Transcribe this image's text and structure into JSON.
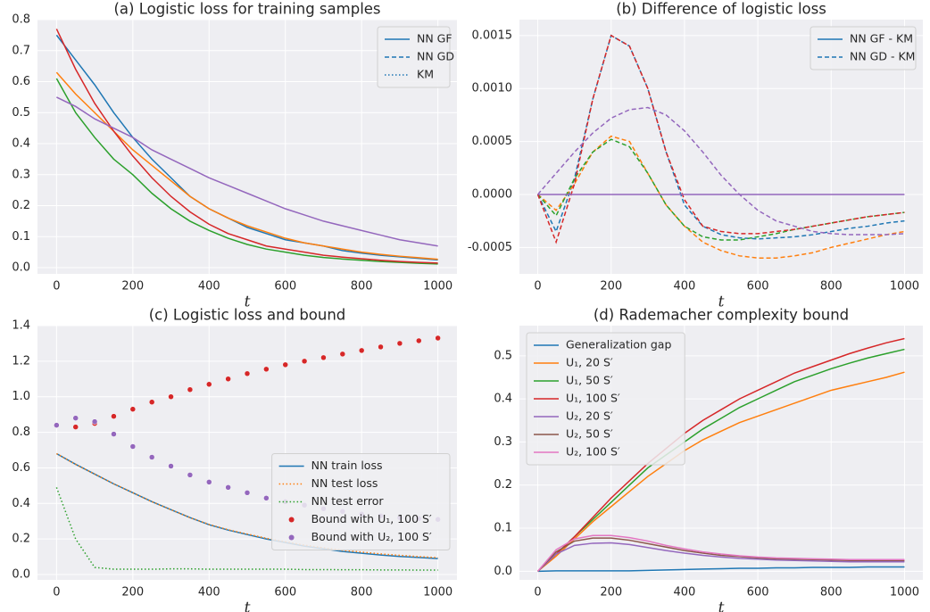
{
  "chart_data": [
    {
      "type": "line",
      "title": "(a) Logistic loss for training samples",
      "xlabel": "t",
      "x": [
        0,
        50,
        100,
        150,
        200,
        250,
        300,
        350,
        400,
        450,
        500,
        550,
        600,
        650,
        700,
        750,
        800,
        850,
        900,
        950,
        1000
      ],
      "xlim": [
        -50,
        1050
      ],
      "xticks": [
        0,
        200,
        400,
        600,
        800,
        1000
      ],
      "ylim": [
        -0.02,
        0.8
      ],
      "yticks": [
        {
          "value": 0,
          "label": "0.0"
        },
        0.1,
        0.2,
        0.3,
        0.4,
        0.5,
        0.6,
        0.7,
        0.8
      ],
      "grid": true,
      "legend_loc": "upper right",
      "legend": [
        {
          "name": "NN GF",
          "style": "solid",
          "color": "#1f77b4"
        },
        {
          "name": "NN GD",
          "style": "dashed",
          "color": "#1f77b4"
        },
        {
          "name": "KM",
          "style": "dotted",
          "color": "#1f77b4"
        }
      ],
      "series": [
        {
          "color": "#1f77b4",
          "style": "solid",
          "values": [
            0.75,
            0.67,
            0.59,
            0.5,
            0.42,
            0.35,
            0.29,
            0.23,
            0.19,
            0.16,
            0.13,
            0.11,
            0.09,
            0.08,
            0.07,
            0.055,
            0.047,
            0.04,
            0.035,
            0.03,
            0.025
          ]
        },
        {
          "color": "#ff7f0e",
          "style": "solid",
          "values": [
            0.63,
            0.56,
            0.5,
            0.44,
            0.38,
            0.33,
            0.28,
            0.23,
            0.19,
            0.16,
            0.135,
            0.115,
            0.095,
            0.08,
            0.07,
            0.06,
            0.05,
            0.043,
            0.037,
            0.032,
            0.027
          ]
        },
        {
          "color": "#2ca02c",
          "style": "solid",
          "values": [
            0.61,
            0.5,
            0.42,
            0.35,
            0.3,
            0.24,
            0.19,
            0.15,
            0.12,
            0.095,
            0.075,
            0.06,
            0.05,
            0.04,
            0.033,
            0.028,
            0.024,
            0.02,
            0.017,
            0.014,
            0.012
          ]
        },
        {
          "color": "#d62728",
          "style": "solid",
          "values": [
            0.77,
            0.64,
            0.53,
            0.44,
            0.36,
            0.29,
            0.23,
            0.18,
            0.14,
            0.11,
            0.09,
            0.07,
            0.06,
            0.05,
            0.04,
            0.034,
            0.029,
            0.024,
            0.02,
            0.017,
            0.015
          ]
        },
        {
          "color": "#9467bd",
          "style": "solid",
          "values": [
            0.55,
            0.52,
            0.48,
            0.45,
            0.42,
            0.38,
            0.35,
            0.32,
            0.29,
            0.265,
            0.24,
            0.215,
            0.19,
            0.17,
            0.15,
            0.135,
            0.12,
            0.105,
            0.09,
            0.08,
            0.07
          ]
        }
      ]
    },
    {
      "type": "line",
      "title": "(b) Difference of logistic loss",
      "xlabel": "t",
      "x": [
        0,
        50,
        100,
        150,
        200,
        250,
        300,
        350,
        400,
        450,
        500,
        550,
        600,
        650,
        700,
        750,
        800,
        850,
        900,
        950,
        1000
      ],
      "xlim": [
        -50,
        1050
      ],
      "xticks": [
        0,
        200,
        400,
        600,
        800,
        1000
      ],
      "ylim": [
        -0.00075,
        0.00165
      ],
      "yticks": [
        {
          "value": -0.0005,
          "label": "-0.0005"
        },
        {
          "value": 0,
          "label": "0.0000"
        },
        {
          "value": 0.0005,
          "label": "0.0005"
        },
        {
          "value": 0.001,
          "label": "0.0010"
        },
        {
          "value": 0.0015,
          "label": "0.0015"
        }
      ],
      "grid": true,
      "legend_loc": "upper right",
      "legend": [
        {
          "name": "NN GF - KM",
          "style": "solid",
          "color": "#1f77b4"
        },
        {
          "name": "NN GD - KM",
          "style": "dashed",
          "color": "#1f77b4"
        }
      ],
      "series": [
        {
          "color": "#1f77b4",
          "style": "dashed",
          "values": [
            0,
            -0.00035,
            0.00015,
            0.0009,
            0.0015,
            0.0014,
            0.001,
            0.0004,
            -0.0001,
            -0.0003,
            -0.00038,
            -0.00041,
            -0.00042,
            -0.00041,
            -0.0004,
            -0.00038,
            -0.00035,
            -0.00032,
            -0.0003,
            -0.00027,
            -0.00025
          ]
        },
        {
          "color": "#ff7f0e",
          "style": "dashed",
          "values": [
            0,
            -0.00015,
            0.0001,
            0.0004,
            0.00055,
            0.0005,
            0.0002,
            -0.0001,
            -0.0003,
            -0.00045,
            -0.00053,
            -0.00058,
            -0.0006,
            -0.0006,
            -0.00058,
            -0.00055,
            -0.0005,
            -0.00046,
            -0.00042,
            -0.00038,
            -0.00035
          ]
        },
        {
          "color": "#2ca02c",
          "style": "dashed",
          "values": [
            0,
            -0.0002,
            0.00015,
            0.0004,
            0.00052,
            0.00045,
            0.0002,
            -0.0001,
            -0.0003,
            -0.0004,
            -0.00043,
            -0.00043,
            -0.0004,
            -0.00037,
            -0.00033,
            -0.0003,
            -0.00027,
            -0.00024,
            -0.00021,
            -0.00019,
            -0.00017
          ]
        },
        {
          "color": "#d62728",
          "style": "dashed",
          "values": [
            0,
            -0.00045,
            0.0001,
            0.0009,
            0.0015,
            0.0014,
            0.001,
            0.0004,
            -5e-05,
            -0.0003,
            -0.00035,
            -0.00037,
            -0.00037,
            -0.00035,
            -0.00033,
            -0.0003,
            -0.00027,
            -0.00024,
            -0.00021,
            -0.00019,
            -0.00017
          ]
        },
        {
          "color": "#9467bd",
          "style": "dashed",
          "values": [
            0,
            0.0002,
            0.0004,
            0.00058,
            0.00072,
            0.0008,
            0.00082,
            0.00075,
            0.0006,
            0.0004,
            0.00018,
            0,
            -0.00015,
            -0.00025,
            -0.0003,
            -0.00035,
            -0.00037,
            -0.00038,
            -0.00038,
            -0.00038,
            -0.00037
          ]
        },
        {
          "color": "#9467bd",
          "style": "solid",
          "values": [
            0,
            0,
            0,
            0,
            0,
            0,
            0,
            0,
            0,
            0,
            0,
            0,
            0,
            0,
            0,
            0,
            0,
            0,
            0,
            0,
            0
          ]
        }
      ]
    },
    {
      "type": "line",
      "title": "(c) Logistic loss and bound",
      "xlabel": "t",
      "x": [
        0,
        50,
        100,
        150,
        200,
        250,
        300,
        350,
        400,
        450,
        500,
        550,
        600,
        650,
        700,
        750,
        800,
        850,
        900,
        950,
        1000
      ],
      "xlim": [
        -50,
        1050
      ],
      "xticks": [
        0,
        200,
        400,
        600,
        800,
        1000
      ],
      "ylim": [
        -0.03,
        1.4
      ],
      "yticks": [
        {
          "value": 0,
          "label": "0.0"
        },
        0.2,
        0.4,
        0.6,
        0.8,
        {
          "value": 1,
          "label": "1.0"
        },
        1.2,
        1.4
      ],
      "grid": true,
      "legend_loc": "center right",
      "series": [
        {
          "name": "NN train loss",
          "color": "#1f77b4",
          "style": "solid",
          "values": [
            0.68,
            0.62,
            0.565,
            0.51,
            0.46,
            0.41,
            0.365,
            0.32,
            0.28,
            0.25,
            0.225,
            0.2,
            0.18,
            0.16,
            0.145,
            0.13,
            0.12,
            0.11,
            0.102,
            0.096,
            0.09
          ]
        },
        {
          "name": "NN test loss",
          "color": "#ff7f0e",
          "style": "dotted",
          "values": [
            0.68,
            0.62,
            0.565,
            0.51,
            0.46,
            0.41,
            0.365,
            0.32,
            0.282,
            0.252,
            0.228,
            0.204,
            0.184,
            0.165,
            0.15,
            0.136,
            0.126,
            0.116,
            0.108,
            0.101,
            0.095
          ]
        },
        {
          "name": "NN test error",
          "color": "#2ca02c",
          "style": "dotted",
          "values": [
            0.49,
            0.2,
            0.04,
            0.03,
            0.03,
            0.03,
            0.032,
            0.032,
            0.03,
            0.03,
            0.03,
            0.03,
            0.03,
            0.028,
            0.028,
            0.027,
            0.027,
            0.026,
            0.026,
            0.025,
            0.025
          ]
        },
        {
          "name": "Bound with U₁, 100 S′",
          "color": "#d62728",
          "style": "dots",
          "values": [
            0.84,
            0.83,
            0.85,
            0.89,
            0.93,
            0.97,
            1.0,
            1.04,
            1.07,
            1.1,
            1.13,
            1.155,
            1.18,
            1.2,
            1.22,
            1.24,
            1.26,
            1.28,
            1.3,
            1.315,
            1.33
          ]
        },
        {
          "name": "Bound with U₂, 100 S′",
          "color": "#9467bd",
          "style": "dots",
          "values": [
            0.84,
            0.88,
            0.86,
            0.79,
            0.72,
            0.66,
            0.61,
            0.56,
            0.52,
            0.49,
            0.46,
            0.43,
            0.41,
            0.39,
            0.37,
            0.355,
            0.34,
            0.33,
            0.32,
            0.315,
            0.31
          ]
        }
      ]
    },
    {
      "type": "line",
      "title": "(d) Rademacher complexity bound",
      "xlabel": "t",
      "x": [
        0,
        50,
        100,
        150,
        200,
        250,
        300,
        350,
        400,
        450,
        500,
        550,
        600,
        650,
        700,
        750,
        800,
        850,
        900,
        950,
        1000
      ],
      "xlim": [
        -50,
        1050
      ],
      "xticks": [
        0,
        200,
        400,
        600,
        800,
        1000
      ],
      "ylim": [
        -0.02,
        0.57
      ],
      "yticks": [
        {
          "value": 0,
          "label": "0.0"
        },
        0.1,
        0.2,
        0.3,
        0.4,
        0.5
      ],
      "grid": true,
      "legend_loc": "upper left",
      "series": [
        {
          "name": "Generalization gap",
          "color": "#1f77b4",
          "style": "solid",
          "values": [
            0,
            0.001,
            0.001,
            0.001,
            0.001,
            0.001,
            0.002,
            0.003,
            0.004,
            0.005,
            0.006,
            0.007,
            0.007,
            0.008,
            0.008,
            0.009,
            0.009,
            0.009,
            0.01,
            0.01,
            0.01
          ]
        },
        {
          "name": "U₁, 20 S′",
          "color": "#ff7f0e",
          "style": "solid",
          "values": [
            0,
            0.035,
            0.075,
            0.115,
            0.15,
            0.185,
            0.22,
            0.25,
            0.28,
            0.305,
            0.325,
            0.345,
            0.36,
            0.375,
            0.39,
            0.405,
            0.42,
            0.43,
            0.44,
            0.45,
            0.462
          ]
        },
        {
          "name": "U₁, 50 S′",
          "color": "#2ca02c",
          "style": "solid",
          "values": [
            0,
            0.04,
            0.08,
            0.12,
            0.16,
            0.2,
            0.24,
            0.27,
            0.3,
            0.33,
            0.355,
            0.38,
            0.4,
            0.42,
            0.44,
            0.455,
            0.47,
            0.483,
            0.495,
            0.505,
            0.515
          ]
        },
        {
          "name": "U₁, 100 S′",
          "color": "#d62728",
          "style": "solid",
          "values": [
            0,
            0.04,
            0.08,
            0.125,
            0.17,
            0.21,
            0.25,
            0.285,
            0.32,
            0.35,
            0.375,
            0.4,
            0.42,
            0.44,
            0.46,
            0.475,
            0.49,
            0.505,
            0.518,
            0.53,
            0.54
          ]
        },
        {
          "name": "U₂, 20 S′",
          "color": "#9467bd",
          "style": "solid",
          "values": [
            0,
            0.04,
            0.06,
            0.065,
            0.066,
            0.062,
            0.055,
            0.048,
            0.042,
            0.037,
            0.033,
            0.03,
            0.028,
            0.026,
            0.025,
            0.024,
            0.023,
            0.022,
            0.022,
            0.022,
            0.022
          ]
        },
        {
          "name": "U₂, 50 S′",
          "color": "#8c564b",
          "style": "solid",
          "values": [
            0,
            0.045,
            0.07,
            0.077,
            0.077,
            0.072,
            0.064,
            0.056,
            0.048,
            0.042,
            0.037,
            0.034,
            0.031,
            0.029,
            0.028,
            0.027,
            0.026,
            0.025,
            0.025,
            0.025,
            0.025
          ]
        },
        {
          "name": "U₂, 100 S′",
          "color": "#e377c2",
          "style": "solid",
          "values": [
            0,
            0.05,
            0.075,
            0.083,
            0.083,
            0.078,
            0.07,
            0.06,
            0.052,
            0.045,
            0.04,
            0.036,
            0.033,
            0.031,
            0.03,
            0.029,
            0.028,
            0.027,
            0.027,
            0.027,
            0.027
          ]
        }
      ]
    }
  ]
}
